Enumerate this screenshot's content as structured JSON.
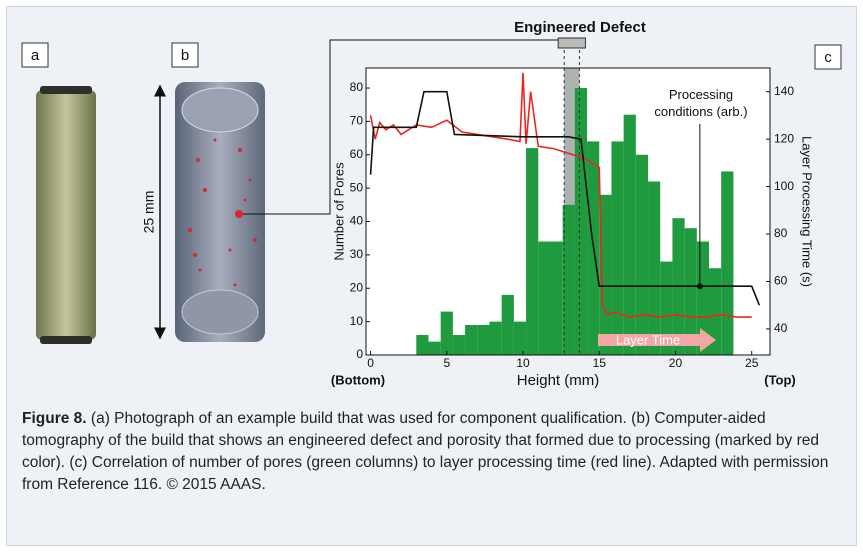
{
  "panels": {
    "a": "a",
    "b": "b",
    "c": "c"
  },
  "scale_label": "25 mm",
  "chart_data": {
    "type": "histogram",
    "annotation": "Engineered Defect",
    "defect_range": [
      12.7,
      13.7
    ],
    "x_start_label": "(Bottom)",
    "x_end_label": "(Top)",
    "xlabel": "Height (mm)",
    "ylabel": "Number of Pores",
    "y2label": "Layer Processing Time (s)",
    "color": "#1f9a3f",
    "bins": [
      3.0,
      3.8,
      4.6,
      5.4,
      6.2,
      7.0,
      7.8,
      8.6,
      9.4,
      10.2,
      11.0,
      11.8,
      12.6,
      13.4,
      14.2,
      15.0,
      15.8,
      16.6,
      17.4,
      18.2,
      19.0,
      19.8,
      20.6,
      21.4,
      22.2,
      23.0,
      23.8
    ],
    "values": [
      6,
      4,
      13,
      6,
      9,
      9,
      10,
      18,
      10,
      62,
      34,
      34,
      45,
      80,
      64,
      48,
      64,
      72,
      60,
      52,
      28,
      41,
      38,
      34,
      26,
      55
    ],
    "series": [
      {
        "name": "Layer Time",
        "type": "line",
        "color": "#e8281e",
        "axis": "y2",
        "x": [
          0,
          0.3,
          0.6,
          1,
          1.5,
          2,
          3,
          4,
          5,
          6,
          7,
          8,
          9,
          9.8,
          10,
          10.2,
          10.5,
          11,
          12,
          13,
          14,
          14.5,
          15,
          15.2,
          15.5,
          16,
          17,
          18,
          19,
          20,
          21,
          22,
          23,
          24,
          25
        ],
        "values": [
          130,
          120,
          127,
          124,
          126,
          122,
          126,
          125,
          128,
          123,
          122,
          121,
          120,
          119,
          148,
          118,
          140,
          117,
          116,
          114,
          112,
          110,
          108,
          50,
          46,
          47,
          45,
          46,
          45,
          46,
          45,
          45,
          46,
          45,
          45
        ]
      },
      {
        "name": "Processing conditions (arb.)",
        "type": "line",
        "color": "#111111",
        "axis": "y2",
        "x": [
          0,
          0.2,
          3,
          3.5,
          5,
          5.5,
          10,
          13,
          13.8,
          14.5,
          15,
          19,
          21.6,
          24,
          25,
          25.5
        ],
        "values": [
          105,
          125,
          125,
          140,
          140,
          122,
          121,
          121,
          120,
          80,
          58,
          58,
          58,
          58,
          58,
          50
        ]
      }
    ],
    "xlim": [
      -0.3,
      26.2
    ],
    "xticks": [
      0,
      5,
      10,
      15,
      20,
      25
    ],
    "ylim": [
      0,
      86
    ],
    "yticks": [
      0,
      10,
      20,
      30,
      40,
      50,
      60,
      70,
      80
    ],
    "y2lim": [
      29,
      150
    ],
    "y2ticks": [
      40,
      60,
      80,
      100,
      120,
      140
    ]
  },
  "caption": {
    "label": "Figure 8.",
    "text": "(a) Photograph of an example build that was used for component qualification. (b) Computer-aided tomography of the build that shows an engineered defect and porosity that formed due to processing (marked by red color). (c) Correlation of number of pores (green columns) to layer processing time (red line). Adapted with permission from Reference 116. © 2015 AAAS."
  }
}
